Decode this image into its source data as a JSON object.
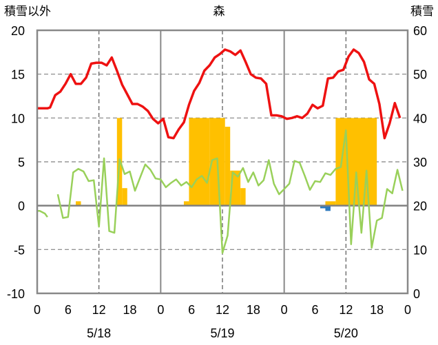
{
  "chart_data": {
    "type": "bar+line",
    "title": "森",
    "left_axis_title": "積雪以外",
    "right_axis_title": "積雪",
    "left_ylim": [
      -10,
      20
    ],
    "left_yticks": [
      "20",
      "15",
      "10",
      "5",
      "0",
      "-5",
      "-10"
    ],
    "right_ylim": [
      0,
      60
    ],
    "right_yticks": [
      "60",
      "50",
      "40",
      "30",
      "20",
      "10",
      "0"
    ],
    "x_hours": [
      0,
      72
    ],
    "xticks": [
      "0",
      "6",
      "12",
      "18",
      "0",
      "6",
      "12",
      "18",
      "0",
      "6",
      "12",
      "18",
      "0"
    ],
    "dates": [
      "5/18",
      "5/19",
      "5/20"
    ],
    "grid": "dashed vertical at 12:00, dashed horizontal at 5 and 15",
    "colors": {
      "temperature": "#ee1111",
      "green_series": "#99d05a",
      "bars_orange": "#ffc000",
      "bars_blue": "#2f7bbf"
    },
    "series": [
      {
        "color": "red",
        "axis": "left",
        "points": [
          [
            0,
            11.1
          ],
          [
            1,
            11.1
          ],
          [
            2,
            11.1
          ],
          [
            2.5,
            11.2
          ],
          [
            3.5,
            12.6
          ],
          [
            4.5,
            13.0
          ],
          [
            5.5,
            13.9
          ],
          [
            6.5,
            15.0
          ],
          [
            7.5,
            13.9
          ],
          [
            8.5,
            13.9
          ],
          [
            9.5,
            14.6
          ],
          [
            10.5,
            16.2
          ],
          [
            11.5,
            16.3
          ],
          [
            12.5,
            16.3
          ],
          [
            13.5,
            16.0
          ],
          [
            14.5,
            16.9
          ],
          [
            15.5,
            15.4
          ],
          [
            16.5,
            13.8
          ],
          [
            17.5,
            12.7
          ],
          [
            18.5,
            11.6
          ],
          [
            19.5,
            11.6
          ],
          [
            20.5,
            11.3
          ],
          [
            21.5,
            10.8
          ],
          [
            22.5,
            9.9
          ],
          [
            23.5,
            9.4
          ],
          [
            24.5,
            9.9
          ],
          [
            25.5,
            7.8
          ],
          [
            26.5,
            7.7
          ],
          [
            27.5,
            8.7
          ],
          [
            28.5,
            9.5
          ],
          [
            29.5,
            11.5
          ],
          [
            30.5,
            13.1
          ],
          [
            31.5,
            14.0
          ],
          [
            32.5,
            15.4
          ],
          [
            33.5,
            16.0
          ],
          [
            34.5,
            16.9
          ],
          [
            35.5,
            17.3
          ],
          [
            36.5,
            17.8
          ],
          [
            37.5,
            17.6
          ],
          [
            38.5,
            17.2
          ],
          [
            39.5,
            17.7
          ],
          [
            40.5,
            16.4
          ],
          [
            41.5,
            15.0
          ],
          [
            42.5,
            14.6
          ],
          [
            43.5,
            14.5
          ],
          [
            44.5,
            13.9
          ],
          [
            45.5,
            10.3
          ],
          [
            46.5,
            10.3
          ],
          [
            47.5,
            10.2
          ],
          [
            48.5,
            9.9
          ],
          [
            49.5,
            10.0
          ],
          [
            50.5,
            10.2
          ],
          [
            51.5,
            10.0
          ],
          [
            52.5,
            10.5
          ],
          [
            53.5,
            11.5
          ],
          [
            54.5,
            11.1
          ],
          [
            55.5,
            11.4
          ],
          [
            56.5,
            14.5
          ],
          [
            57.5,
            14.6
          ],
          [
            58.5,
            15.3
          ],
          [
            59.5,
            15.5
          ],
          [
            60.5,
            17.0
          ],
          [
            61.5,
            17.8
          ],
          [
            62.5,
            17.4
          ],
          [
            63.5,
            16.4
          ],
          [
            64.5,
            14.4
          ],
          [
            65.5,
            13.9
          ],
          [
            66.5,
            11.6
          ],
          [
            67.5,
            7.7
          ],
          [
            68.5,
            9.4
          ],
          [
            69.5,
            11.7
          ],
          [
            70.5,
            10.0
          ]
        ]
      },
      {
        "color": "green",
        "axis": "left",
        "segments": [
          [
            [
              0,
              -0.6
            ],
            [
              0.5,
              -0.6
            ],
            [
              1.5,
              -0.9
            ],
            [
              2,
              -1.3
            ]
          ],
          [
            [
              4,
              1.3
            ],
            [
              5,
              -1.4
            ],
            [
              6,
              -1.3
            ],
            [
              7,
              3.8
            ],
            [
              8,
              4.2
            ],
            [
              9,
              3.9
            ],
            [
              10,
              2.8
            ],
            [
              11,
              2.9
            ],
            [
              12,
              -2.4
            ],
            [
              13,
              5.4
            ],
            [
              14,
              -2.9
            ],
            [
              15,
              -3.1
            ],
            [
              16,
              5.3
            ],
            [
              17,
              3.6
            ],
            [
              18,
              3.9
            ],
            [
              19,
              1.7
            ],
            [
              20,
              3.2
            ],
            [
              21,
              4.7
            ],
            [
              22,
              4.1
            ],
            [
              23,
              3.1
            ],
            [
              24,
              3.0
            ],
            [
              25,
              2.1
            ],
            [
              26,
              2.6
            ],
            [
              27,
              3.0
            ],
            [
              28,
              2.3
            ],
            [
              29,
              2.7
            ],
            [
              30,
              2.1
            ],
            [
              31,
              3.0
            ],
            [
              32,
              3.4
            ],
            [
              33,
              2.6
            ],
            [
              34,
              5.2
            ],
            [
              35,
              5.4
            ],
            [
              36,
              -5.4
            ],
            [
              37,
              -3.4
            ],
            [
              38,
              3.8
            ],
            [
              39,
              3.3
            ],
            [
              40,
              4.3
            ],
            [
              41,
              2.7
            ],
            [
              42,
              3.8
            ],
            [
              43,
              2.3
            ],
            [
              44,
              2.9
            ],
            [
              45,
              5.2
            ],
            [
              46,
              2.5
            ],
            [
              47,
              1.3
            ],
            [
              48,
              1.9
            ],
            [
              49,
              2.5
            ],
            [
              50,
              5.1
            ],
            [
              51,
              4.9
            ],
            [
              52,
              3.4
            ],
            [
              53,
              1.8
            ],
            [
              54,
              2.8
            ],
            [
              55,
              2.7
            ],
            [
              56,
              3.7
            ],
            [
              57,
              3.5
            ],
            [
              58,
              4.2
            ],
            [
              59,
              4.4
            ],
            [
              60,
              8.6
            ],
            [
              61,
              -4.4
            ],
            [
              62,
              3.8
            ],
            [
              63,
              -3.1
            ],
            [
              64,
              4.0
            ],
            [
              65,
              -4.8
            ],
            [
              66,
              -1.7
            ],
            [
              67,
              -1.4
            ],
            [
              68,
              1.9
            ],
            [
              69,
              1.4
            ],
            [
              70,
              4.1
            ],
            [
              71,
              1.7
            ]
          ]
        ]
      }
    ],
    "bars_right_axis": [
      {
        "color": "orange",
        "start_hour": 7.5,
        "end_hour": 8.5,
        "value": 21
      },
      {
        "color": "orange",
        "start_hour": 15.5,
        "end_hour": 16.5,
        "value": 40
      },
      {
        "color": "orange",
        "start_hour": 16.5,
        "end_hour": 17.5,
        "value": 24
      },
      {
        "color": "orange",
        "start_hour": 28.5,
        "end_hour": 29.5,
        "value": 21
      },
      {
        "color": "orange",
        "start_hour": 29.5,
        "end_hour": 33.5,
        "value": 40
      },
      {
        "color": "orange",
        "start_hour": 33.5,
        "end_hour": 36.5,
        "value": 40
      },
      {
        "color": "orange",
        "start_hour": 36.5,
        "end_hour": 37.5,
        "value": 38
      },
      {
        "color": "orange",
        "start_hour": 37.5,
        "end_hour": 39.5,
        "value": 28
      },
      {
        "color": "orange",
        "start_hour": 39.5,
        "end_hour": 40.5,
        "value": 24
      },
      {
        "color": "orange",
        "start_hour": 56,
        "end_hour": 58,
        "value": 21
      },
      {
        "color": "orange",
        "start_hour": 58,
        "end_hour": 66,
        "value": 40
      },
      {
        "color": "blue",
        "start_hour": 55,
        "end_hour": 57,
        "value": 19.4
      },
      {
        "color": "blue",
        "start_hour": 56,
        "end_hour": 57,
        "value": 18.8
      }
    ]
  }
}
